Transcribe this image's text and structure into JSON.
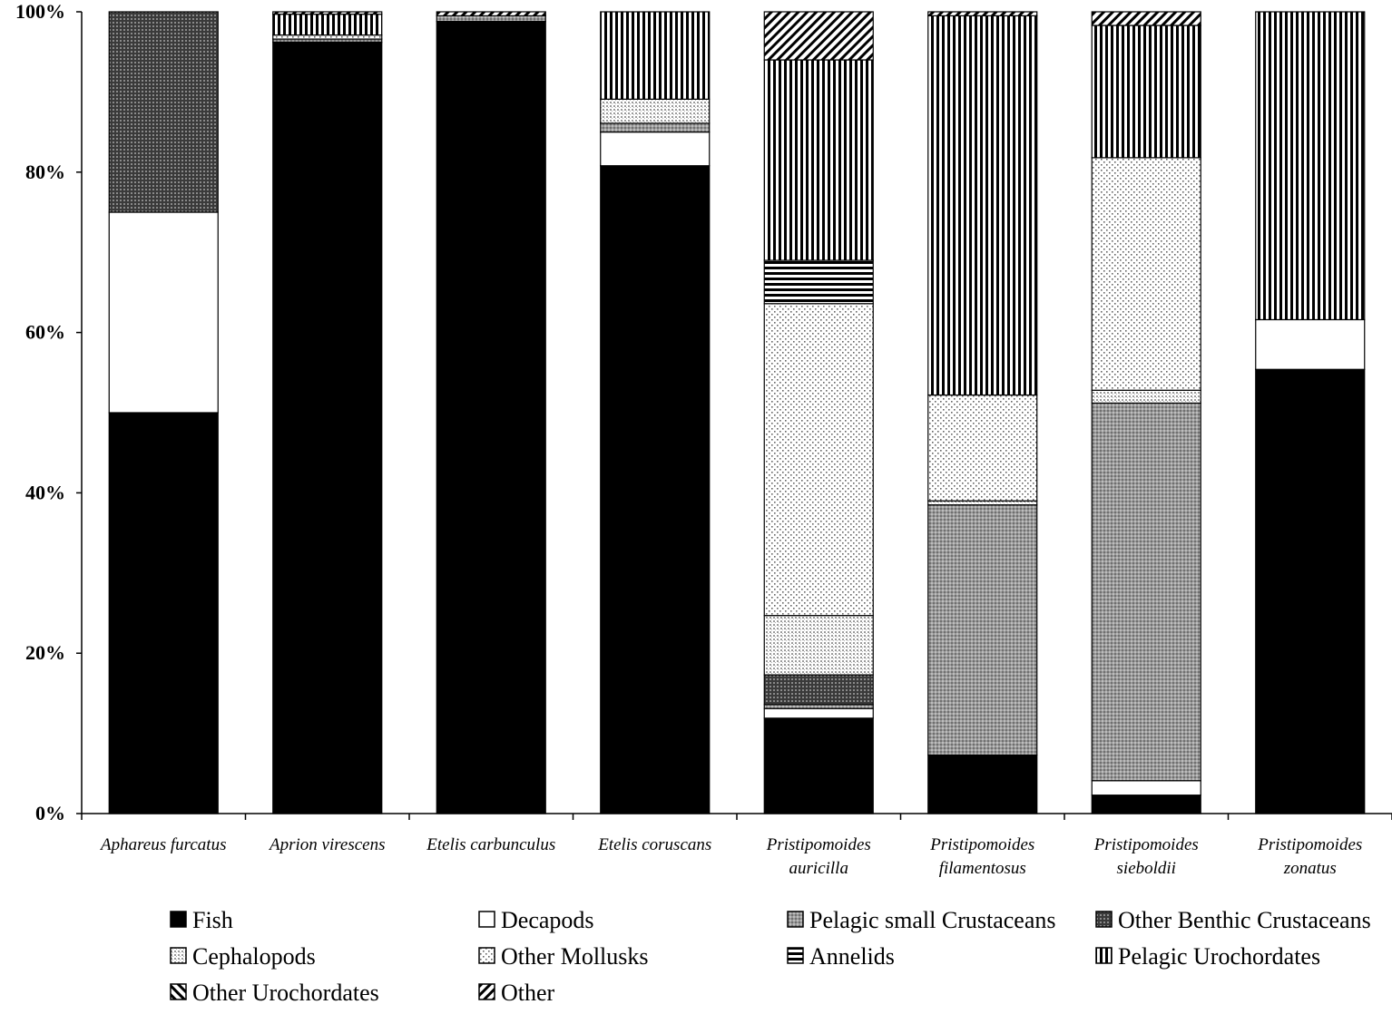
{
  "chart_data": {
    "type": "bar",
    "stacked": true,
    "percent": true,
    "title": "",
    "xlabel": "",
    "ylabel": "",
    "ylim": [
      0,
      100
    ],
    "yticks": [
      "0%",
      "20%",
      "40%",
      "60%",
      "80%",
      "100%"
    ],
    "grid": false,
    "legend_position": "bottom",
    "categories": [
      [
        "Aphareus furcatus"
      ],
      [
        "Aprion virescens"
      ],
      [
        "Etelis carbunculus"
      ],
      [
        "Etelis coruscans"
      ],
      [
        "Pristipomoides",
        "auricilla"
      ],
      [
        "Pristipomoides",
        "filamentosus"
      ],
      [
        "Pristipomoides",
        "sieboldii"
      ],
      [
        "Pristipomoides",
        "zonatus"
      ]
    ],
    "series": [
      {
        "name": "Fish",
        "pattern": "solid-black",
        "values": [
          50,
          96.2,
          98.8,
          80.8,
          11.9,
          7.3,
          2.3,
          55.4
        ]
      },
      {
        "name": "Decapods",
        "pattern": "white",
        "values": [
          25,
          0,
          0,
          4.2,
          1.2,
          0,
          1.8,
          6.2
        ]
      },
      {
        "name": "Pelagic small Crustaceans",
        "pattern": "fine-gray-dots",
        "values": [
          0,
          0.4,
          0.7,
          1.1,
          0.5,
          31.2,
          47.1,
          0
        ]
      },
      {
        "name": "Other Benthic Crustaceans",
        "pattern": "dark-dots",
        "values": [
          25,
          0,
          0,
          0,
          3.7,
          0,
          0,
          0
        ]
      },
      {
        "name": "Cephalopods",
        "pattern": "light-dots",
        "values": [
          0,
          0,
          0,
          3,
          7.4,
          0.5,
          1.6,
          0
        ]
      },
      {
        "name": "Other Mollusks",
        "pattern": "sparse-dots",
        "values": [
          0,
          0.5,
          0,
          0,
          38.9,
          13.2,
          29,
          0
        ]
      },
      {
        "name": "Annelids",
        "pattern": "horizontal-stripes",
        "values": [
          0,
          0,
          0,
          0,
          5.4,
          0,
          0,
          0
        ]
      },
      {
        "name": "Pelagic Urochordates",
        "pattern": "vertical-stripes",
        "values": [
          0,
          2.6,
          0,
          10.9,
          25,
          47.3,
          16.5,
          38.4
        ]
      },
      {
        "name": "Other Urochordates",
        "pattern": "diagonal-back",
        "values": [
          0,
          0,
          0,
          0,
          0,
          0,
          0,
          0
        ]
      },
      {
        "name": "Other",
        "pattern": "diagonal-forward",
        "values": [
          0,
          0.3,
          0.5,
          0,
          6,
          0.5,
          1.7,
          0
        ]
      }
    ]
  }
}
